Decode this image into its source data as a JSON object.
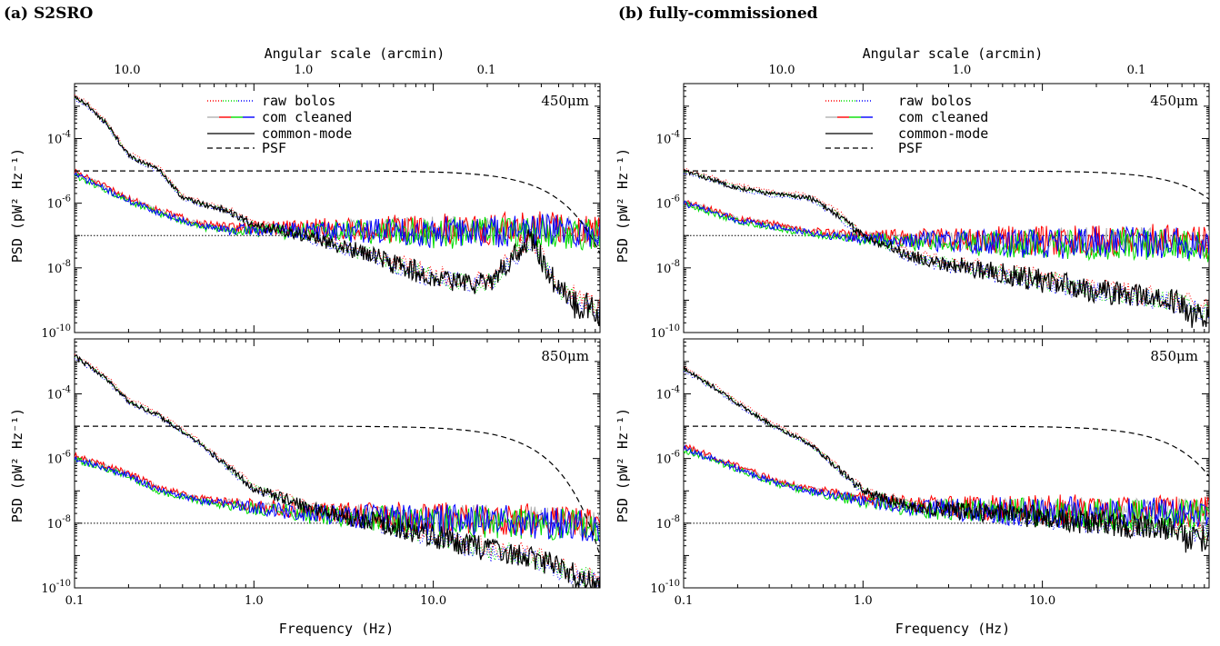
{
  "figure": {
    "panels": [
      {
        "id": "a",
        "title": "(a) S2SRO"
      },
      {
        "id": "b",
        "title": "(b) fully-commissioned"
      }
    ],
    "top_axis_label": "Angular scale (arcmin)",
    "top_ticks": [
      "10.0",
      "1.0",
      "0.1"
    ],
    "xlabel": "Frequency (Hz)",
    "ylabel": "PSD (pW² Hz⁻¹)",
    "legend": [
      "raw bolos",
      "com cleaned",
      "common-mode",
      "PSF"
    ],
    "colors": {
      "red": "#ff0000",
      "green": "#00dd00",
      "blue": "#0000ff",
      "gray": "#b0b0b0",
      "black": "#000000"
    }
  },
  "chart_data": [
    {
      "type": "line",
      "panel": "(a) S2SRO",
      "band": "450μm",
      "xscale": "log",
      "yscale": "log",
      "xlim": [
        0.1,
        85
      ],
      "ylim": [
        1e-10,
        0.005
      ],
      "x_ticks": [
        "0.1",
        "1.0",
        "10.0"
      ],
      "y_ticks": [
        1e-10,
        1e-08,
        1e-06,
        0.0001
      ],
      "psf_level": 1e-05,
      "psf_knee": 35,
      "noise_floor": 1e-07,
      "series": [
        {
          "name": "common-mode",
          "x": [
            0.1,
            0.12,
            0.15,
            0.2,
            0.3,
            0.4,
            0.5,
            0.7,
            1.0,
            2.0,
            4.0,
            7.0,
            10.0,
            20.0,
            35.0,
            50.0,
            85.0
          ],
          "y": [
            0.002,
            0.001,
            0.0003,
            3e-05,
            1e-05,
            1.5e-06,
            1e-06,
            6e-07,
            2e-07,
            1e-07,
            3e-08,
            1e-08,
            5e-09,
            3e-09,
            8e-08,
            2e-09,
            5e-10
          ]
        },
        {
          "name": "com cleaned",
          "x": [
            0.1,
            0.2,
            0.3,
            0.5,
            0.7,
            1.0,
            2.0,
            5.0,
            10.0,
            20.0,
            40.0,
            85.0
          ],
          "y": [
            8e-06,
            1.2e-06,
            5e-07,
            2e-07,
            1.5e-07,
            1.5e-07,
            1.4e-07,
            1.4e-07,
            1.3e-07,
            1.3e-07,
            1.5e-07,
            1.1e-07
          ]
        }
      ]
    },
    {
      "type": "line",
      "panel": "(a) S2SRO",
      "band": "850μm",
      "xscale": "log",
      "yscale": "log",
      "xlim": [
        0.1,
        85
      ],
      "ylim": [
        1e-10,
        0.005
      ],
      "x_ticks": [
        "0.1",
        "1.0",
        "10.0"
      ],
      "y_ticks": [
        1e-10,
        1e-08,
        1e-06,
        0.0001
      ],
      "psf_level": 1e-05,
      "psf_knee": 28,
      "noise_floor": 1e-08,
      "series": [
        {
          "name": "common-mode",
          "x": [
            0.1,
            0.15,
            0.2,
            0.3,
            0.5,
            0.7,
            1.0,
            2.0,
            5.0,
            10.0,
            20.0,
            35.0,
            50.0,
            85.0
          ],
          "y": [
            0.0015,
            0.0003,
            6e-05,
            2e-05,
            3e-06,
            6e-07,
            1.2e-07,
            3e-08,
            1e-08,
            4e-09,
            1.5e-09,
            1e-09,
            4e-10,
            1.5e-10
          ]
        },
        {
          "name": "com cleaned",
          "x": [
            0.1,
            0.2,
            0.3,
            0.5,
            1.0,
            2.0,
            5.0,
            10.0,
            20.0,
            50.0,
            85.0
          ],
          "y": [
            1e-06,
            3e-07,
            1e-07,
            5e-08,
            3e-08,
            2e-08,
            1.5e-08,
            1.2e-08,
            1.2e-08,
            1e-08,
            8e-09
          ]
        }
      ]
    },
    {
      "type": "line",
      "panel": "(b) fully-commissioned",
      "band": "450μm",
      "xscale": "log",
      "yscale": "log",
      "xlim": [
        0.1,
        85
      ],
      "ylim": [
        1e-10,
        0.005
      ],
      "x_ticks": [
        "0.1",
        "1.0",
        "10.0"
      ],
      "y_ticks": [
        1e-10,
        1e-08,
        1e-06,
        0.0001
      ],
      "psf_level": 1e-05,
      "psf_knee": 60,
      "noise_floor": 1e-07,
      "series": [
        {
          "name": "common-mode",
          "x": [
            0.1,
            0.15,
            0.2,
            0.3,
            0.5,
            0.7,
            1.0,
            1.5,
            2.0,
            5.0,
            10.0,
            20.0,
            50.0,
            85.0
          ],
          "y": [
            1e-05,
            5e-06,
            3e-06,
            2e-06,
            1.5e-06,
            5e-07,
            1e-07,
            4e-08,
            2e-08,
            8e-09,
            4e-09,
            2e-09,
            1e-09,
            5e-10
          ]
        },
        {
          "name": "com cleaned",
          "x": [
            0.1,
            0.2,
            0.3,
            0.5,
            1.0,
            2.0,
            5.0,
            10.0,
            20.0,
            50.0,
            85.0
          ],
          "y": [
            1e-06,
            3e-07,
            2e-07,
            1.2e-07,
            8e-08,
            7e-08,
            6e-08,
            6e-08,
            6e-08,
            6e-08,
            5e-08
          ]
        }
      ]
    },
    {
      "type": "line",
      "panel": "(b) fully-commissioned",
      "band": "850μm",
      "xscale": "log",
      "yscale": "log",
      "xlim": [
        0.1,
        85
      ],
      "ylim": [
        1e-10,
        0.005
      ],
      "x_ticks": [
        "0.1",
        "1.0",
        "10.0"
      ],
      "y_ticks": [
        1e-10,
        1e-08,
        1e-06,
        0.0001
      ],
      "psf_level": 1e-05,
      "psf_knee": 45,
      "noise_floor": 1e-08,
      "series": [
        {
          "name": "common-mode",
          "x": [
            0.1,
            0.15,
            0.2,
            0.3,
            0.5,
            0.7,
            1.0,
            2.0,
            5.0,
            10.0,
            20.0,
            50.0,
            85.0
          ],
          "y": [
            0.0006,
            0.00015,
            5e-05,
            1.2e-05,
            3e-06,
            6e-07,
            1e-07,
            3e-08,
            2e-08,
            1.5e-08,
            1e-08,
            7e-09,
            5e-09
          ]
        },
        {
          "name": "com cleaned",
          "x": [
            0.1,
            0.2,
            0.3,
            0.5,
            1.0,
            2.0,
            5.0,
            10.0,
            20.0,
            50.0,
            85.0
          ],
          "y": [
            2e-06,
            5e-07,
            2e-07,
            1e-07,
            5e-08,
            3e-08,
            2.5e-08,
            2.2e-08,
            2e-08,
            2e-08,
            1.8e-08
          ]
        }
      ]
    }
  ]
}
